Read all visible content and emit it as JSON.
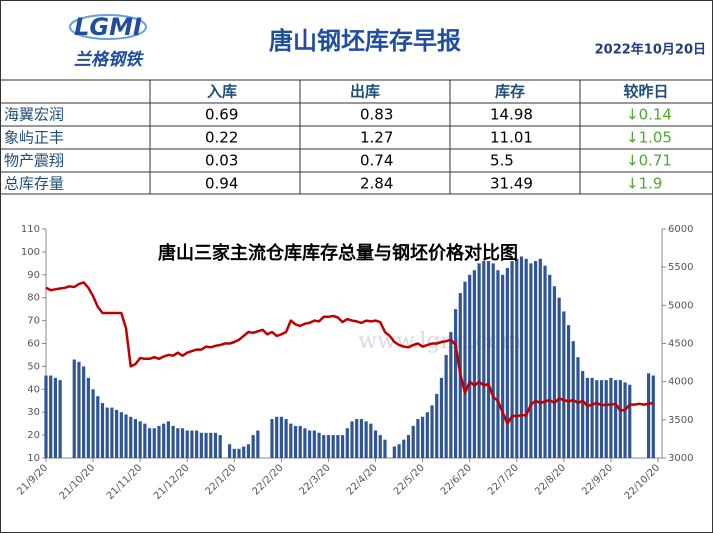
{
  "header": {
    "logo_text": "LGMI",
    "logo_caption": "兰格钢铁",
    "title": "唐山钢坯库存早报",
    "date": "2022年10月20日"
  },
  "table": {
    "columns": [
      "入库",
      "出库",
      "库存",
      "较昨日"
    ],
    "rows": [
      [
        "海翼宏润",
        "0.69",
        "0.83",
        "14.98",
        "↓0.14"
      ],
      [
        "象屿正丰",
        "0.22",
        "1.27",
        "11.01",
        "↓1.05"
      ],
      [
        "物产震翔",
        "0.03",
        "0.74",
        "5.5",
        "↓0.71"
      ],
      [
        "总库存量",
        "0.94",
        "2.84",
        "31.49",
        "↓1.9"
      ]
    ]
  },
  "chart_data": {
    "type": "bar-line",
    "title": "唐山三家主流仓库库存总量与钢坯价格对比图",
    "watermark": "www.lgmi.com",
    "categories": [
      "21/9/20",
      null,
      null,
      null,
      null,
      null,
      null,
      null,
      null,
      null,
      "21/10/20",
      null,
      null,
      null,
      null,
      null,
      null,
      null,
      null,
      null,
      "21/11/20",
      null,
      null,
      null,
      null,
      null,
      null,
      null,
      null,
      null,
      "21/12/20",
      null,
      null,
      null,
      null,
      null,
      null,
      null,
      null,
      null,
      "22/1/20",
      null,
      null,
      null,
      null,
      null,
      null,
      null,
      null,
      null,
      "22/2/20",
      null,
      null,
      null,
      null,
      null,
      null,
      null,
      null,
      null,
      "22/3/20",
      null,
      null,
      null,
      null,
      null,
      null,
      null,
      null,
      null,
      "22/4/20",
      null,
      null,
      null,
      null,
      null,
      null,
      null,
      null,
      null,
      "22/5/20",
      null,
      null,
      null,
      null,
      null,
      null,
      null,
      null,
      null,
      "22/6/20",
      null,
      null,
      null,
      null,
      null,
      null,
      null,
      null,
      null,
      "22/7/20",
      null,
      null,
      null,
      null,
      null,
      null,
      null,
      null,
      null,
      "22/8/20",
      null,
      null,
      null,
      null,
      null,
      null,
      null,
      null,
      null,
      "22/9/20",
      null,
      null,
      null,
      null,
      null,
      null,
      null,
      null,
      null,
      "22/10/20"
    ],
    "series": [
      {
        "type": "bar",
        "color": "#2f5597",
        "values": [
          46,
          46,
          45,
          44,
          null,
          null,
          53,
          52,
          50,
          45,
          40,
          37,
          34,
          32,
          32,
          31,
          30,
          29,
          28,
          27,
          26,
          25,
          23,
          23,
          24,
          25,
          26,
          24,
          23,
          23,
          22,
          22,
          22,
          21,
          21,
          21,
          21,
          20,
          null,
          16,
          14,
          14,
          15,
          16,
          20,
          22,
          null,
          null,
          27,
          28,
          28,
          27,
          25,
          24,
          24,
          23,
          22,
          22,
          21,
          20,
          20,
          20,
          20,
          20,
          23,
          26,
          27,
          27,
          26,
          25,
          22,
          20,
          18,
          null,
          15,
          16,
          18,
          20,
          24,
          27,
          28,
          30,
          33,
          38,
          45,
          55,
          65,
          75,
          82,
          87,
          90,
          92,
          95,
          96,
          96,
          95,
          92,
          90,
          93,
          96,
          97,
          98,
          97,
          95,
          96,
          97,
          94,
          90,
          85,
          80,
          74,
          68,
          61,
          54,
          48,
          45,
          45,
          44,
          44,
          44,
          45,
          44,
          44,
          43,
          42,
          null,
          null,
          null,
          47,
          46,
          null
        ]
      },
      {
        "type": "line",
        "axis": "y2",
        "color": "#c00000",
        "values": [
          5230,
          5200,
          5210,
          5220,
          5230,
          5250,
          5240,
          5280,
          5300,
          5230,
          5120,
          4980,
          4900,
          4900,
          4900,
          4900,
          4900,
          4700,
          4200,
          4230,
          4310,
          4300,
          4300,
          4320,
          4300,
          4330,
          4350,
          4340,
          4380,
          4340,
          4380,
          4400,
          4420,
          4420,
          4460,
          4450,
          4470,
          4480,
          4500,
          4500,
          4520,
          4550,
          4600,
          4650,
          4640,
          4660,
          4680,
          4620,
          4650,
          4600,
          4620,
          4650,
          4800,
          4750,
          4730,
          4760,
          4770,
          4800,
          4790,
          4850,
          4850,
          4860,
          4840,
          4780,
          4820,
          4800,
          4790,
          4770,
          4800,
          4790,
          4800,
          4780,
          4650,
          4600,
          4520,
          4480,
          4460,
          4450,
          4480,
          4500,
          4460,
          4480,
          4500,
          4500,
          4520,
          4530,
          4550,
          4480,
          4100,
          3850,
          4000,
          3950,
          4000,
          3950,
          3970,
          3800,
          3750,
          3600,
          3450,
          3550,
          3550,
          3560,
          3560,
          3700,
          3750,
          3720,
          3740,
          3760,
          3720,
          3780,
          3760,
          3740,
          3760,
          3720,
          3750,
          3680,
          3700,
          3720,
          3690,
          3700,
          3700,
          3710,
          3620,
          3630,
          3700,
          3700,
          3710,
          3700,
          3710,
          3720,
          null
        ]
      }
    ],
    "ylim": [
      10,
      110
    ],
    "yticks": [
      10,
      20,
      30,
      40,
      50,
      60,
      70,
      80,
      90,
      100,
      110
    ],
    "y2lim": [
      3000,
      6000
    ],
    "y2ticks": [
      3000,
      3500,
      4000,
      4500,
      5000,
      5500,
      6000
    ]
  }
}
